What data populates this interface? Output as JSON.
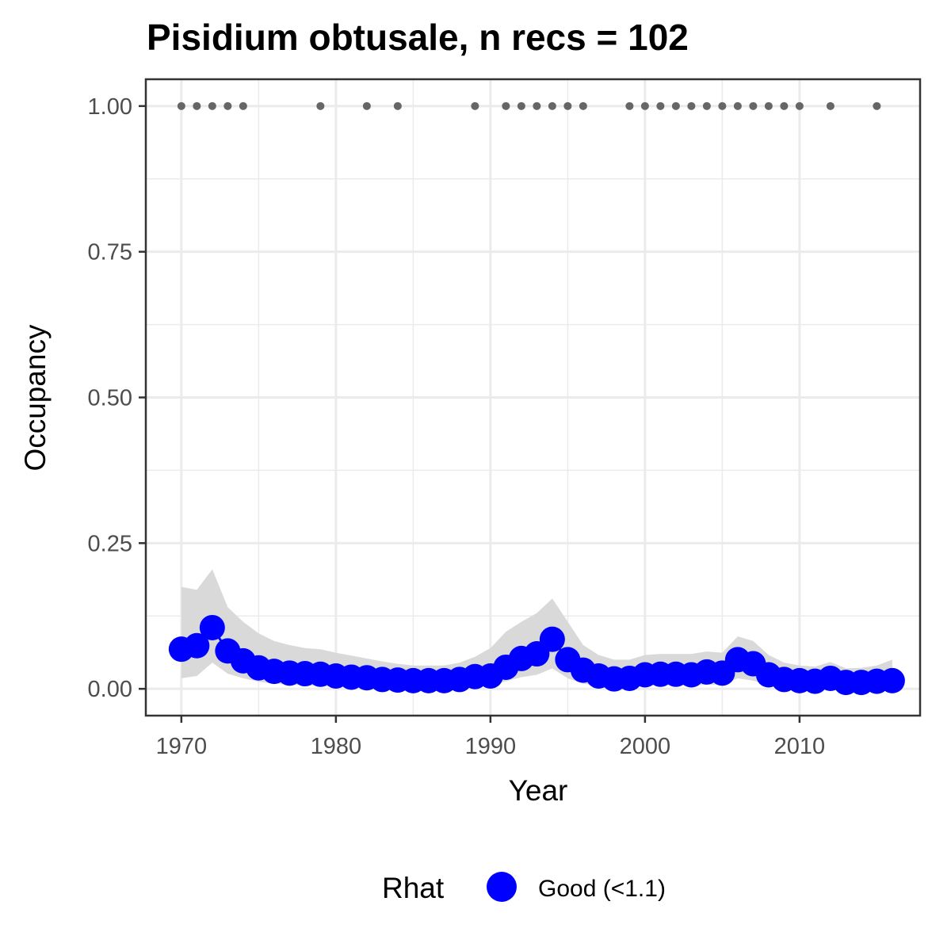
{
  "chart_data": {
    "type": "line",
    "title": "Pisidium obtusale, n recs = 102",
    "xlabel": "Year",
    "ylabel": "Occupancy",
    "xlim": [
      1967.7,
      2017.8
    ],
    "ylim": [
      -0.046,
      1.046
    ],
    "x_ticks": [
      1970,
      1980,
      1990,
      2000,
      2010
    ],
    "x_tick_labels": [
      "1970",
      "1980",
      "1990",
      "2000",
      "2010"
    ],
    "y_ticks": [
      0,
      0.25,
      0.5,
      0.75,
      1.0
    ],
    "y_tick_labels": [
      "0.00",
      "0.25",
      "0.50",
      "0.75",
      "1.00"
    ],
    "grid": true,
    "colors": {
      "estimate": "#0000ff",
      "ribbon": "#d9d9d9",
      "records": "#666666",
      "grid": "#ebebeb",
      "panel_border": "#333333"
    },
    "series": [
      {
        "x": [
          1970,
          1971,
          1972,
          1973,
          1974,
          1975,
          1976,
          1977,
          1978,
          1979,
          1980,
          1981,
          1982,
          1983,
          1984,
          1985,
          1986,
          1987,
          1988,
          1989,
          1990,
          1991,
          1992,
          1993,
          1994,
          1995,
          1996,
          1997,
          1998,
          1999,
          2000,
          2001,
          2002,
          2003,
          2004,
          2005,
          2006,
          2007,
          2008,
          2009,
          2010,
          2011,
          2012,
          2013,
          2014,
          2015,
          2016
        ],
        "values": [
          0.068,
          0.074,
          0.105,
          0.065,
          0.048,
          0.036,
          0.03,
          0.027,
          0.026,
          0.025,
          0.022,
          0.02,
          0.019,
          0.016,
          0.015,
          0.014,
          0.014,
          0.014,
          0.016,
          0.021,
          0.022,
          0.037,
          0.052,
          0.06,
          0.085,
          0.05,
          0.032,
          0.022,
          0.017,
          0.018,
          0.024,
          0.025,
          0.025,
          0.024,
          0.029,
          0.027,
          0.05,
          0.043,
          0.024,
          0.016,
          0.014,
          0.013,
          0.018,
          0.011,
          0.011,
          0.013,
          0.014
        ],
        "lower": [
          0.018,
          0.022,
          0.045,
          0.026,
          0.018,
          0.012,
          0.009,
          0.007,
          0.006,
          0.005,
          0.004,
          0.003,
          0.003,
          0.002,
          0.002,
          0.002,
          0.002,
          0.002,
          0.003,
          0.005,
          0.006,
          0.013,
          0.02,
          0.024,
          0.035,
          0.018,
          0.009,
          0.005,
          0.004,
          0.004,
          0.006,
          0.006,
          0.006,
          0.006,
          0.007,
          0.007,
          0.018,
          0.014,
          0.006,
          0.003,
          0.002,
          0.002,
          0.003,
          0.002,
          0.002,
          0.002,
          0.003
        ],
        "upper": [
          0.175,
          0.17,
          0.205,
          0.14,
          0.115,
          0.095,
          0.082,
          0.075,
          0.07,
          0.068,
          0.062,
          0.057,
          0.052,
          0.047,
          0.043,
          0.04,
          0.04,
          0.04,
          0.045,
          0.055,
          0.07,
          0.098,
          0.115,
          0.13,
          0.155,
          0.115,
          0.075,
          0.058,
          0.05,
          0.05,
          0.058,
          0.06,
          0.06,
          0.06,
          0.064,
          0.062,
          0.09,
          0.082,
          0.058,
          0.045,
          0.04,
          0.038,
          0.046,
          0.035,
          0.036,
          0.04,
          0.05
        ]
      }
    ],
    "records": {
      "y": 1.0,
      "years": [
        1970,
        1971,
        1972,
        1973,
        1974,
        1979,
        1982,
        1984,
        1989,
        1991,
        1992,
        1993,
        1994,
        1995,
        1996,
        1999,
        2000,
        2001,
        2002,
        2003,
        2004,
        2005,
        2006,
        2007,
        2008,
        2009,
        2010,
        2012,
        2015
      ]
    },
    "legend": {
      "position": "bottom",
      "title": "Rhat",
      "items": [
        {
          "label": "Good (<1.1)",
          "color": "#0000ff"
        }
      ]
    }
  }
}
